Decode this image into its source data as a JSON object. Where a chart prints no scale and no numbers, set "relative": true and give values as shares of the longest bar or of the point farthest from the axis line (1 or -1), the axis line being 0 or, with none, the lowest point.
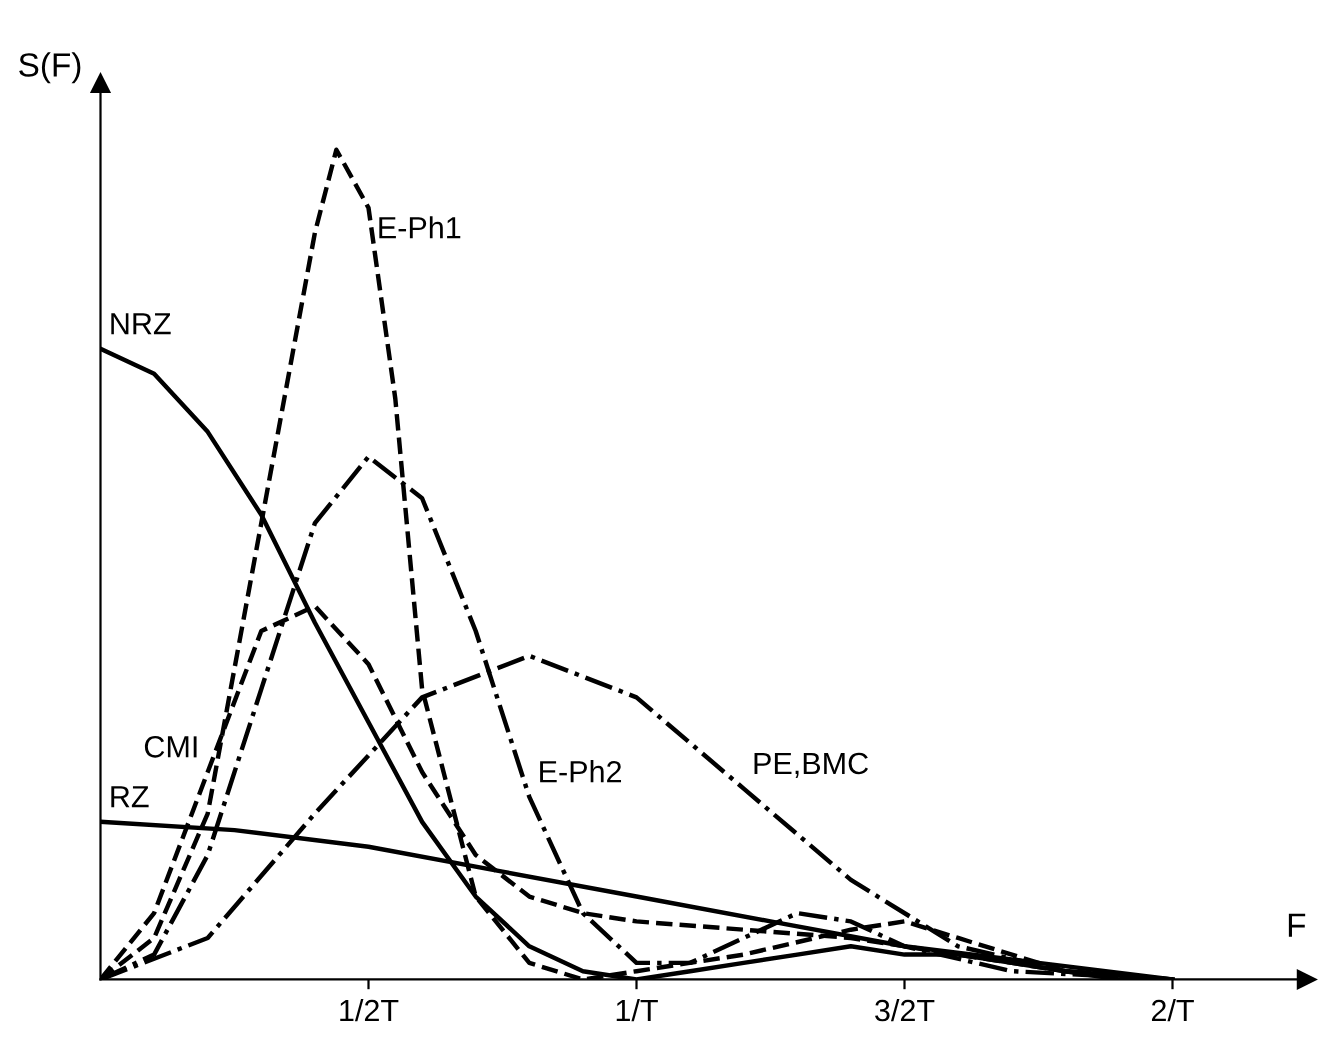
{
  "chart_data": {
    "type": "line",
    "relative": true,
    "xlabel": "F",
    "ylabel": "S(F)",
    "xlim": [
      0,
      2.25
    ],
    "xticks": [
      {
        "value": 0.5,
        "label": "1/2T"
      },
      {
        "value": 1,
        "label": "1/T"
      },
      {
        "value": 1.5,
        "label": "3/2T"
      },
      {
        "value": 2,
        "label": "2/T"
      }
    ],
    "tick_labels": "x",
    "grid": false,
    "marker": "none",
    "series": [
      {
        "name": "NRZ",
        "color": "#000000",
        "line_style": "solid",
        "x": [
          0,
          0.1,
          0.2,
          0.3,
          0.4,
          0.5,
          0.6,
          0.7,
          0.8,
          0.9,
          1.0,
          1.1,
          1.2,
          1.3,
          1.4,
          1.5,
          1.6,
          1.7,
          1.8,
          1.9,
          2.0
        ],
        "values": [
          0.76,
          0.73,
          0.66,
          0.56,
          0.43,
          0.31,
          0.19,
          0.1,
          0.04,
          0.01,
          0,
          0.01,
          0.02,
          0.03,
          0.04,
          0.03,
          0.03,
          0.02,
          0.01,
          0,
          0
        ]
      },
      {
        "name": "RZ",
        "color": "#000000",
        "line_style": "solid",
        "x": [
          0,
          0.25,
          0.5,
          0.75,
          1.0,
          1.25,
          1.5,
          1.75,
          2.0
        ],
        "values": [
          0.19,
          0.18,
          0.16,
          0.13,
          0.1,
          0.07,
          0.04,
          0.02,
          0
        ]
      },
      {
        "name": "E-Ph1",
        "color": "#000000",
        "line_style": "dashed",
        "x": [
          0,
          0.1,
          0.2,
          0.3,
          0.4,
          0.44,
          0.5,
          0.55,
          0.6,
          0.7,
          0.8,
          0.9,
          1.0,
          1.2,
          1.4,
          1.5,
          1.6,
          1.8,
          2.0
        ],
        "values": [
          0,
          0.05,
          0.2,
          0.55,
          0.9,
          1,
          0.93,
          0.7,
          0.35,
          0.1,
          0.02,
          0,
          0.01,
          0.03,
          0.06,
          0.07,
          0.05,
          0.01,
          0
        ]
      },
      {
        "name": "E-Ph2",
        "color": "#000000",
        "line_style": "dashdot",
        "x": [
          0,
          0.1,
          0.2,
          0.3,
          0.4,
          0.5,
          0.6,
          0.7,
          0.8,
          0.9,
          1.0,
          1.1,
          1.2,
          1.3,
          1.4,
          1.5,
          1.7,
          2.0
        ],
        "values": [
          0,
          0.03,
          0.15,
          0.35,
          0.55,
          0.63,
          0.58,
          0.42,
          0.22,
          0.08,
          0.02,
          0.02,
          0.05,
          0.08,
          0.07,
          0.04,
          0.01,
          0
        ]
      },
      {
        "name": "CMI",
        "color": "#000000",
        "line_style": "dashed",
        "x": [
          0,
          0.1,
          0.2,
          0.3,
          0.4,
          0.5,
          0.6,
          0.7,
          0.8,
          0.9,
          1.0,
          1.2,
          1.4,
          1.6,
          1.8,
          2.0
        ],
        "values": [
          0,
          0.08,
          0.25,
          0.42,
          0.45,
          0.38,
          0.25,
          0.15,
          0.1,
          0.08,
          0.07,
          0.06,
          0.05,
          0.03,
          0.01,
          0
        ]
      },
      {
        "name": "PE,BMC",
        "color": "#000000",
        "line_style": "dashdot",
        "x": [
          0,
          0.2,
          0.4,
          0.6,
          0.8,
          1.0,
          1.2,
          1.4,
          1.6,
          1.8,
          2.0
        ],
        "values": [
          0,
          0.05,
          0.2,
          0.34,
          0.39,
          0.34,
          0.23,
          0.12,
          0.04,
          0.01,
          0
        ]
      }
    ]
  }
}
